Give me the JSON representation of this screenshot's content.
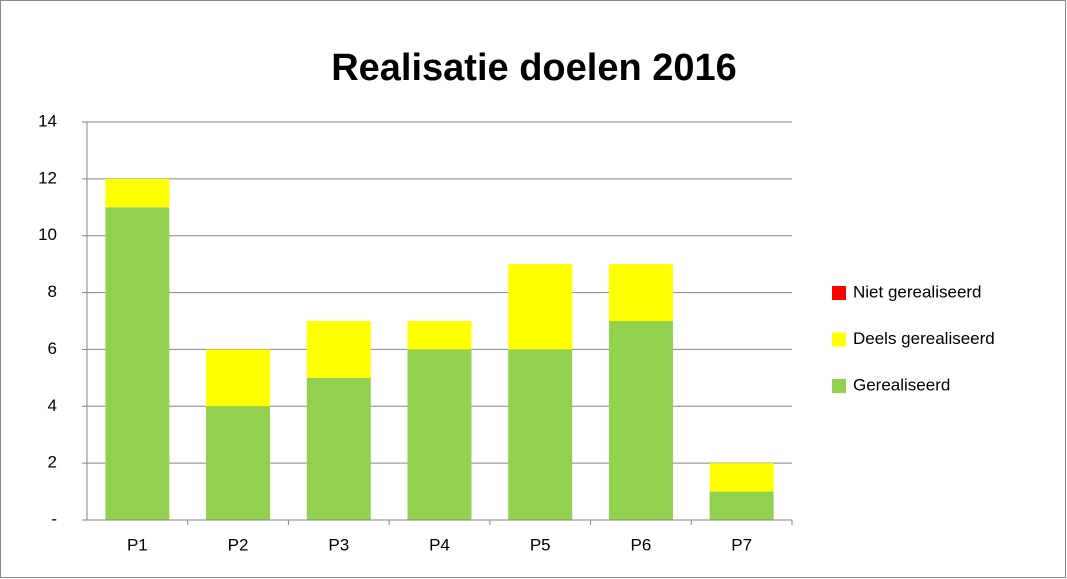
{
  "chart_data": {
    "type": "stacked-bar",
    "title": "Realisatie doelen 2016",
    "categories": [
      "P1",
      "P2",
      "P3",
      "P4",
      "P5",
      "P6",
      "P7"
    ],
    "series": [
      {
        "name": "Gerealiseerd",
        "color": "#92d050",
        "values": [
          11,
          4,
          5,
          6,
          6,
          7,
          1
        ]
      },
      {
        "name": "Deels gerealiseerd",
        "color": "#ffff00",
        "values": [
          1,
          2,
          2,
          1,
          3,
          2,
          1
        ]
      },
      {
        "name": "Niet gerealiseerd",
        "color": "#ff0000",
        "values": [
          0,
          0,
          0,
          0,
          0,
          0,
          0
        ]
      }
    ],
    "ylim": [
      0,
      14
    ],
    "yticks": [
      {
        "value": 0,
        "label": "-"
      },
      2,
      4,
      6,
      8,
      10,
      12,
      14
    ],
    "grid": true,
    "legend": "right"
  }
}
